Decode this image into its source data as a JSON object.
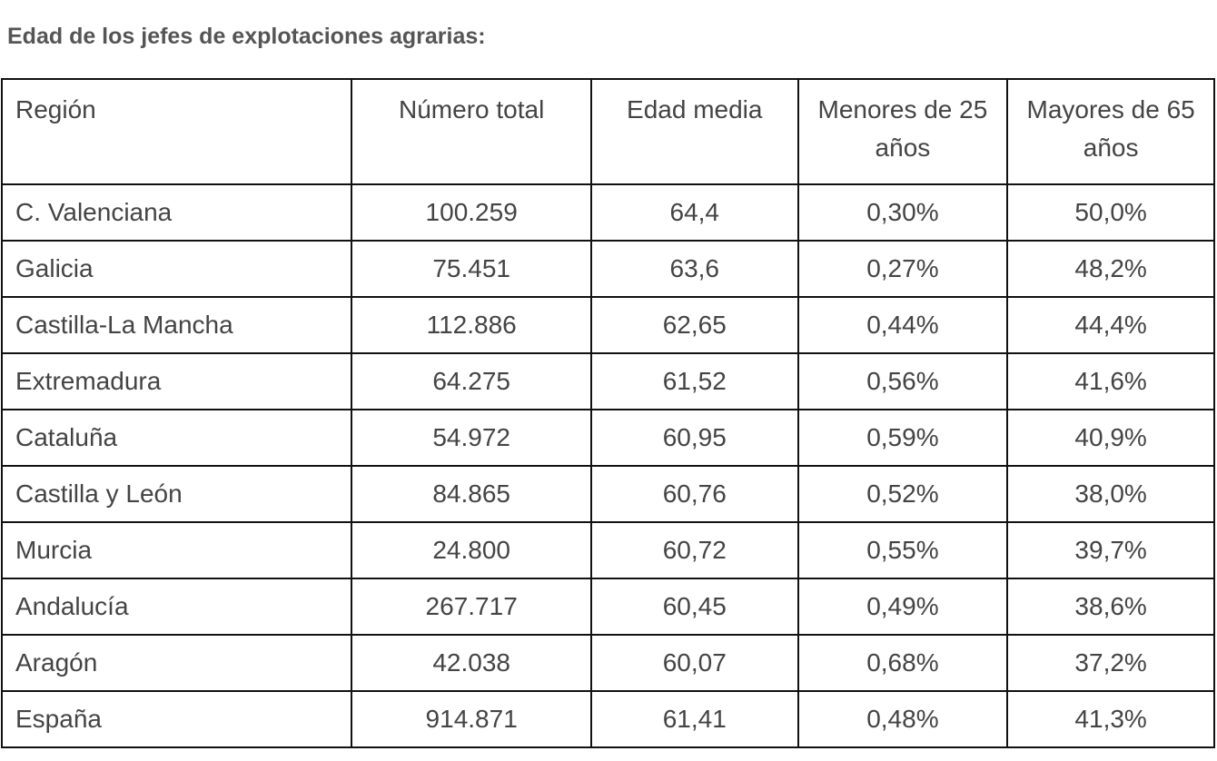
{
  "title": "Edad de los jefes de explotaciones agrarias:",
  "table": {
    "header": [
      "Región",
      "Número total",
      "Edad media",
      "Menores de 25 años",
      "Mayores de 65 años"
    ],
    "rows": [
      [
        "C. Valenciana",
        "100.259",
        "64,4",
        "0,30%",
        "50,0%"
      ],
      [
        "Galicia",
        "75.451",
        "63,6",
        "0,27%",
        "48,2%"
      ],
      [
        "Castilla-La Mancha",
        "112.886",
        "62,65",
        "0,44%",
        "44,4%"
      ],
      [
        "Extremadura",
        "64.275",
        "61,52",
        "0,56%",
        "41,6%"
      ],
      [
        "Cataluña",
        "54.972",
        "60,95",
        "0,59%",
        "40,9%"
      ],
      [
        "Castilla y León",
        "84.865",
        "60,76",
        "0,52%",
        "38,0%"
      ],
      [
        "Murcia",
        "24.800",
        "60,72",
        "0,55%",
        "39,7%"
      ],
      [
        "Andalucía",
        "267.717",
        "60,45",
        "0,49%",
        "38,6%"
      ],
      [
        "Aragón",
        "42.038",
        "60,07",
        "0,68%",
        "37,2%"
      ],
      [
        "España",
        "914.871",
        "61,41",
        "0,48%",
        "41,3%"
      ]
    ]
  }
}
